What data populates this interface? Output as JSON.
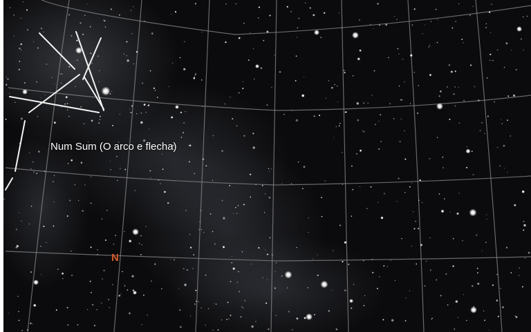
{
  "sky": {
    "background_color": "#0b0b0d",
    "grid_color": "#8a8a8a",
    "constellation_line_color": "#f2f2f2",
    "milky_way_color": "#c8d0e0"
  },
  "constellation": {
    "label": "Num Sum (O arco e flecha)"
  },
  "compass": {
    "marker": "N",
    "color": "#d05a2a"
  }
}
